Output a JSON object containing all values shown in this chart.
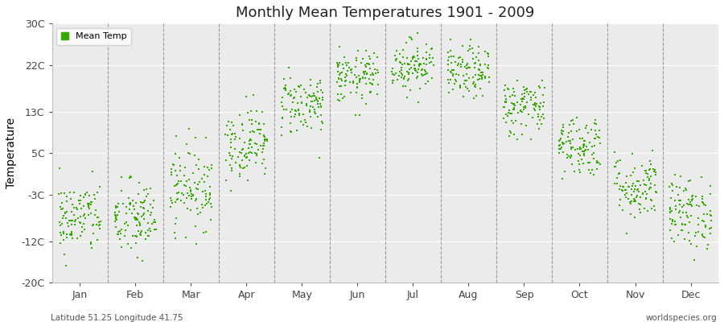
{
  "title": "Monthly Mean Temperatures 1901 - 2009",
  "ylabel": "Temperature",
  "subtitle_left": "Latitude 51.25 Longitude 41.75",
  "subtitle_right": "worldspecies.org",
  "legend_label": "Mean Temp",
  "dot_color": "#33aa00",
  "background_color": "#ffffff",
  "plot_bg_color": "#ebebeb",
  "ylim": [
    -20,
    30
  ],
  "yticks": [
    -20,
    -12,
    -3,
    5,
    13,
    22,
    30
  ],
  "ytick_labels": [
    "-20C",
    "-12C",
    "-3C",
    "5C",
    "13C",
    "22C",
    "30C"
  ],
  "months": [
    "Jan",
    "Feb",
    "Mar",
    "Apr",
    "May",
    "Jun",
    "Jul",
    "Aug",
    "Sep",
    "Oct",
    "Nov",
    "Dec"
  ],
  "num_years": 109,
  "mean_temps": [
    -7.5,
    -7.8,
    -1.5,
    7.0,
    14.5,
    19.5,
    22.0,
    20.5,
    14.0,
    6.5,
    -1.5,
    -6.5
  ],
  "std_temps": [
    3.5,
    3.8,
    4.0,
    3.5,
    3.0,
    2.5,
    2.5,
    2.5,
    2.8,
    3.0,
    3.2,
    3.5
  ],
  "random_seed": 42
}
